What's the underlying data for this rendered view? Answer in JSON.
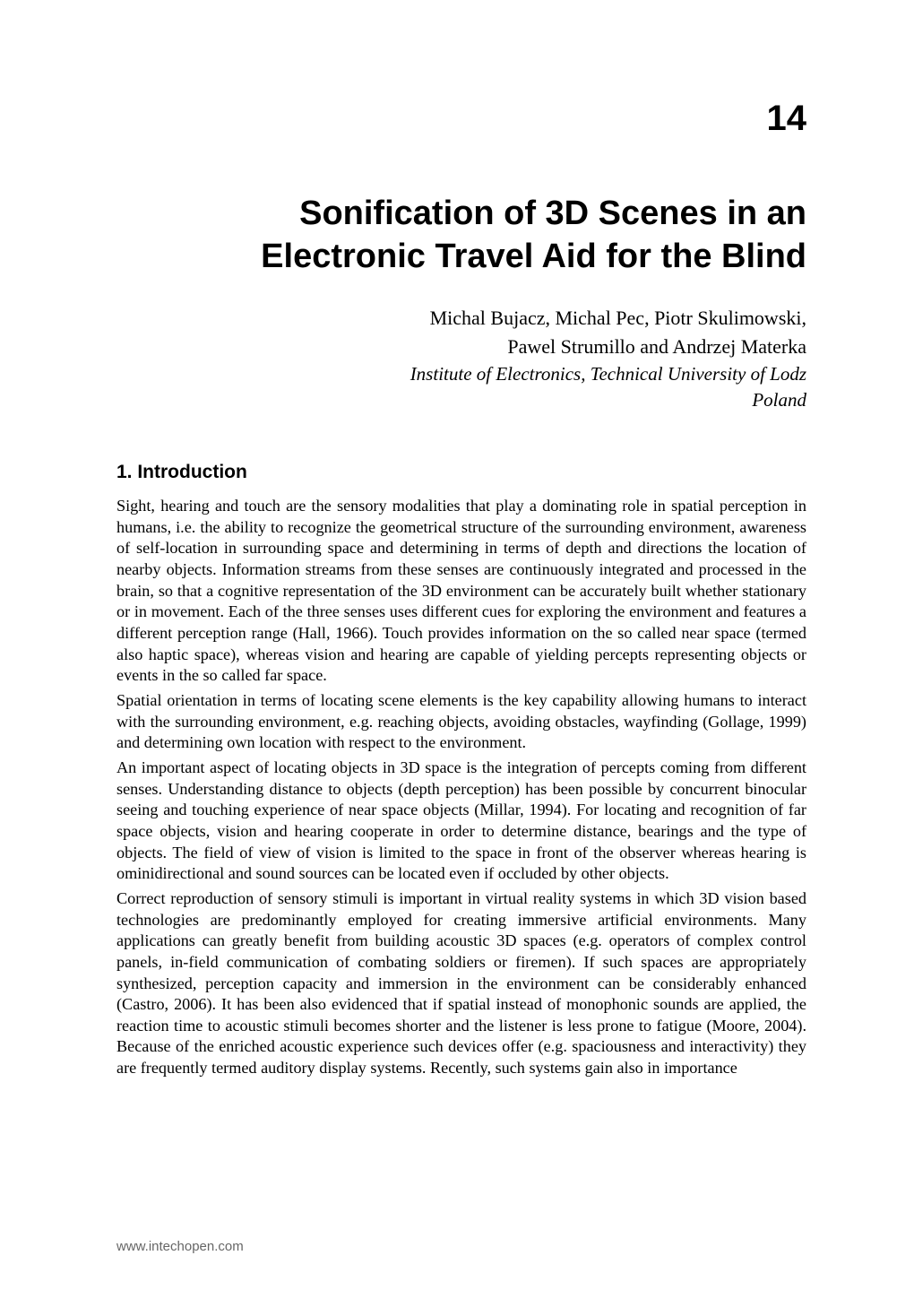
{
  "chapter_number": "14",
  "title_line1": "Sonification of 3D Scenes in an",
  "title_line2": "Electronic Travel Aid for the Blind",
  "authors_line1": "Michal Bujacz, Michal Pec, Piotr Skulimowski,",
  "authors_line2": "Pawel Strumillo and Andrzej Materka",
  "affiliation": "Institute of Electronics, Technical University of Lodz",
  "country": "Poland",
  "section_heading": "1. Introduction",
  "paragraph1": "Sight, hearing and touch are the sensory modalities that play a dominating role in spatial perception in humans, i.e. the ability to recognize the geometrical structure of the surrounding environment, awareness of self-location in surrounding space and determining in terms of depth and directions the location of nearby objects. Information streams from these senses are continuously integrated and processed in the brain, so that a cognitive representation of the 3D environment can be accurately built whether stationary or in movement. Each of the three senses uses different cues for exploring the environment and features a different perception range (Hall, 1966). Touch provides information on the so called near space (termed also haptic space), whereas vision and hearing are capable of yielding percepts representing objects or events in the so called far space.",
  "paragraph2": "Spatial orientation in terms of locating scene elements is the key capability allowing humans to interact with the surrounding environment, e.g. reaching objects, avoiding obstacles, wayfinding (Gollage, 1999) and determining own location with respect to the environment.",
  "paragraph3": "An important aspect of locating objects in 3D space is the integration of percepts coming from different senses. Understanding distance to objects (depth perception) has been possible by concurrent binocular seeing and touching experience of near space objects (Millar, 1994). For locating and recognition of far space objects, vision and hearing cooperate in order to determine distance, bearings and the type of objects. The field of view of vision is limited to the space in front of the observer whereas hearing is ominidirectional and sound sources can be located even if occluded by other objects.",
  "paragraph4": "Correct reproduction of sensory stimuli is important in virtual reality systems in which 3D vision based technologies are predominantly employed for creating immersive artificial environments.  Many applications can greatly benefit from building acoustic 3D spaces (e.g. operators of complex control panels, in-field communication of combating soldiers or firemen). If such spaces are appropriately synthesized, perception capacity and immersion in the environment can be considerably enhanced (Castro, 2006). It has been also evidenced that if spatial instead of monophonic sounds are applied, the reaction time to acoustic stimuli becomes shorter and the listener is less prone to fatigue (Moore, 2004). Because of the enriched acoustic experience such devices offer (e.g. spaciousness and interactivity) they are frequently termed auditory display systems. Recently, such systems gain also in importance",
  "footer": "www.intechopen.com"
}
